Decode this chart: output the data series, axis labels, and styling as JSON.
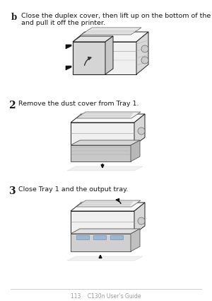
{
  "bg_color": "#ffffff",
  "text_color": "#1a1a1a",
  "step_b_label": "b",
  "step_b_text1": "Close the duplex cover, then lift up on the bottom of the duplexer,",
  "step_b_text2": "and pull it off the printer.",
  "step_2_label": "2",
  "step_2_text": "Remove the dust cover from Tray 1.",
  "step_3_label": "3",
  "step_3_text": "Close Tray 1 and the output tray.",
  "footer_text": "113    C130n User’s Guide",
  "font_size_label": 8.5,
  "font_size_text": 6.8,
  "font_size_footer": 5.5,
  "edge_dark": "#222222",
  "edge_mid": "#555555",
  "fill_light": "#f0f0f0",
  "fill_mid": "#d8d8d8",
  "fill_dark": "#aaaaaa",
  "fill_tray": "#c0b090",
  "line_color": "#bbbbbb",
  "arrow_color": "#111111"
}
